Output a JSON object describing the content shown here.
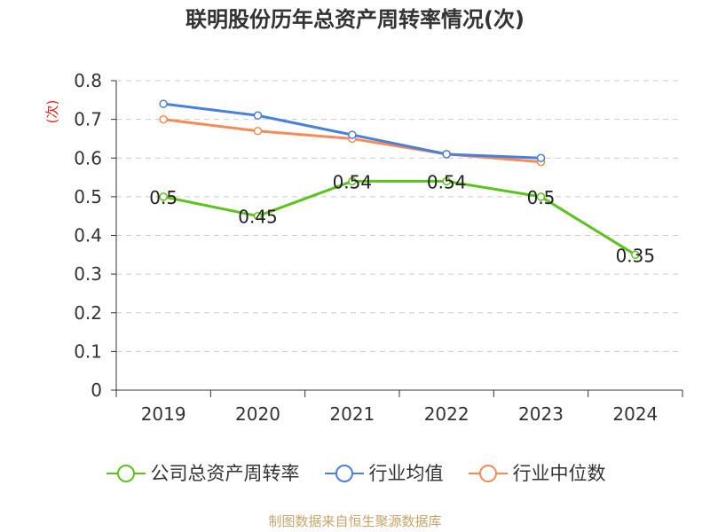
{
  "chart_data": {
    "type": "line",
    "title": "联明股份历年总资产周转率情况(次)",
    "ylabel": "(次)",
    "xlabel": "",
    "categories": [
      "2019",
      "2020",
      "2021",
      "2022",
      "2023",
      "2024"
    ],
    "ylim": [
      0,
      0.8
    ],
    "yticks": [
      "0",
      "0.1",
      "0.2",
      "0.3",
      "0.4",
      "0.5",
      "0.6",
      "0.7",
      "0.8"
    ],
    "grid": true,
    "legend_position": "bottom",
    "series": [
      {
        "name": "公司总资产周转率",
        "color": "#5cc31c",
        "values": [
          0.5,
          0.45,
          0.54,
          0.54,
          0.5,
          0.35
        ],
        "labels": [
          "0.5",
          "0.45",
          "0.54",
          "0.54",
          "0.5",
          "0.35"
        ]
      },
      {
        "name": "行业均值",
        "color": "#4a7fdb",
        "values": [
          0.74,
          0.71,
          0.66,
          0.61,
          0.6,
          null
        ]
      },
      {
        "name": "行业中位数",
        "color": "#f78b53",
        "values": [
          0.7,
          0.67,
          0.65,
          0.61,
          0.59,
          null
        ]
      }
    ]
  },
  "source": "制图数据来自恒生聚源数据库"
}
